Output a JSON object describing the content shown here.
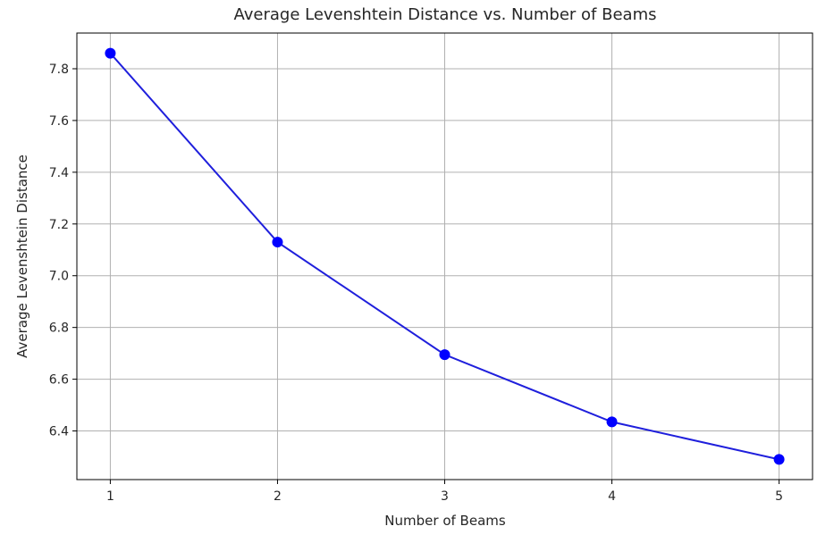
{
  "chart_data": {
    "type": "line",
    "title": "Average Levenshtein Distance vs. Number of Beams",
    "xlabel": "Number of Beams",
    "ylabel": "Average Levenshtein Distance",
    "x": [
      1,
      2,
      3,
      4,
      5
    ],
    "series": [
      {
        "values": [
          7.86,
          7.13,
          6.695,
          6.435,
          6.29
        ],
        "color": "#0000ff",
        "line_color": "#1f1fdc",
        "marker": "circle"
      }
    ],
    "x_ticks": [
      1,
      2,
      3,
      4,
      5
    ],
    "x_tick_labels": [
      "1",
      "2",
      "3",
      "4",
      "5"
    ],
    "y_ticks": [
      6.4,
      6.6,
      6.8,
      7.0,
      7.2,
      7.4,
      7.6,
      7.8
    ],
    "y_tick_labels": [
      "6.4",
      "6.6",
      "6.8",
      "7.0",
      "7.2",
      "7.4",
      "7.6",
      "7.8"
    ],
    "xlim": [
      0.8,
      5.2
    ],
    "ylim": [
      6.212,
      7.938
    ],
    "grid": true,
    "legend": false
  }
}
